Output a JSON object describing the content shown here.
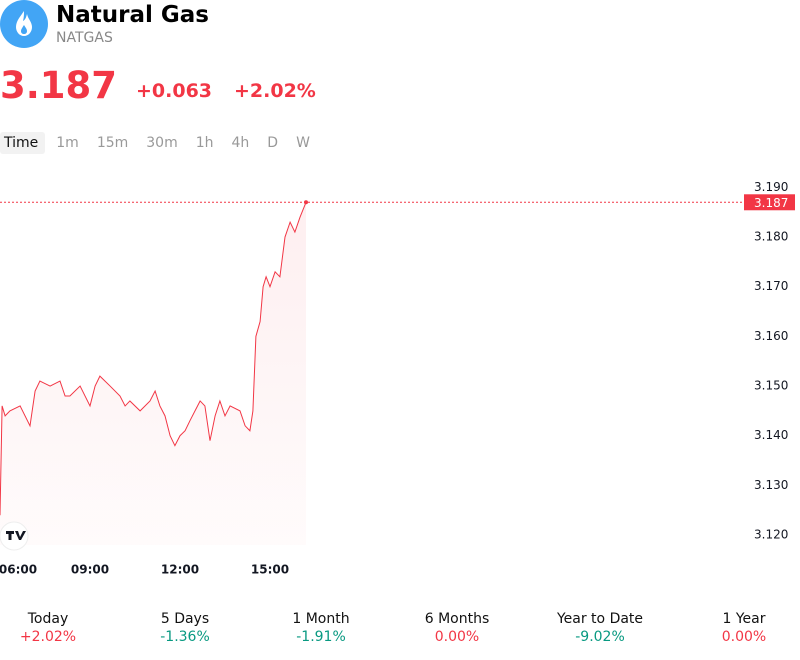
{
  "header": {
    "title": "Natural Gas",
    "symbol": "NATGAS",
    "price": "3.187",
    "change": "+0.063",
    "change_percent": "+2.02%"
  },
  "timeframes": [
    "Time",
    "1m",
    "15m",
    "30m",
    "1h",
    "4h",
    "D",
    "W"
  ],
  "chart_data": {
    "type": "line",
    "color": "#f23645",
    "x": [
      6.0,
      6.07,
      6.17,
      6.33,
      6.67,
      7.0,
      7.17,
      7.33,
      7.67,
      8.0,
      8.17,
      8.33,
      8.67,
      9.0,
      9.17,
      9.33,
      9.67,
      10.0,
      10.17,
      10.33,
      10.67,
      11.0,
      11.17,
      11.33,
      11.5,
      11.67,
      11.83,
      12.0,
      12.17,
      12.33,
      12.5,
      12.67,
      12.83,
      13.0,
      13.17,
      13.33,
      13.5,
      13.67,
      14.0,
      14.17,
      14.33,
      14.43,
      14.53,
      14.67,
      14.77,
      14.87,
      15.0,
      15.17,
      15.33,
      15.5,
      15.67,
      15.83,
      16.0,
      16.2
    ],
    "values": [
      3.124,
      3.146,
      3.144,
      3.145,
      3.146,
      3.142,
      3.149,
      3.151,
      3.15,
      3.151,
      3.148,
      3.148,
      3.15,
      3.146,
      3.15,
      3.152,
      3.15,
      3.148,
      3.146,
      3.147,
      3.145,
      3.147,
      3.149,
      3.146,
      3.144,
      3.14,
      3.138,
      3.14,
      3.141,
      3.143,
      3.145,
      3.147,
      3.146,
      3.139,
      3.144,
      3.147,
      3.144,
      3.146,
      3.145,
      3.142,
      3.141,
      3.145,
      3.16,
      3.163,
      3.17,
      3.172,
      3.17,
      3.173,
      3.172,
      3.18,
      3.183,
      3.181,
      3.184,
      3.187
    ],
    "last_price": 3.187,
    "xlim": [
      6,
      30.6
    ],
    "ylim": [
      3.118,
      3.1935
    ],
    "xticks": [
      {
        "value": 6,
        "label": "06:00"
      },
      {
        "value": 9,
        "label": "09:00"
      },
      {
        "value": 12,
        "label": "12:00"
      },
      {
        "value": 15,
        "label": "15:00"
      }
    ],
    "yticks": [
      {
        "value": 3.12,
        "label": "3.120"
      },
      {
        "value": 3.13,
        "label": "3.130"
      },
      {
        "value": 3.14,
        "label": "3.140"
      },
      {
        "value": 3.15,
        "label": "3.150"
      },
      {
        "value": 3.16,
        "label": "3.160"
      },
      {
        "value": 3.17,
        "label": "3.170"
      },
      {
        "value": 3.18,
        "label": "3.180"
      },
      {
        "value": 3.19,
        "label": "3.190"
      }
    ]
  },
  "performance": [
    {
      "label": "Today",
      "value": "+2.02%",
      "color": "#f23645"
    },
    {
      "label": "5 Days",
      "value": "-1.36%",
      "color": "#089981"
    },
    {
      "label": "1 Month",
      "value": "-1.91%",
      "color": "#089981"
    },
    {
      "label": "6 Months",
      "value": "0.00%",
      "color": "#f23645"
    },
    {
      "label": "Year to Date",
      "value": "-9.02%",
      "color": "#089981"
    },
    {
      "label": "1 Year",
      "value": "0.00%",
      "color": "#f23645"
    }
  ]
}
